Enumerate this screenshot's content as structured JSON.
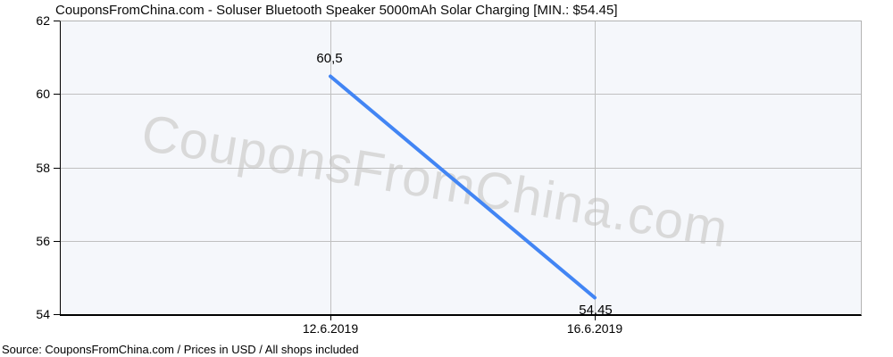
{
  "title": "CouponsFromChina.com - Soluser Bluetooth Speaker 5000mAh Solar Charging [MIN.: $54.45]",
  "watermark": "CouponsFromChina.com",
  "footer": "Source: CouponsFromChina.com / Prices in USD / All shops included",
  "colors": {
    "line": "#4285f4",
    "plot_bg": "#f5f7fb",
    "grid": "#c0c0c0",
    "border": "#b3b3b3",
    "axis": "#000000",
    "watermark": "#d9d9d9"
  },
  "chart_data": {
    "type": "line",
    "title": "CouponsFromChina.com - Soluser Bluetooth Speaker 5000mAh Solar Charging [MIN.: $54.45]",
    "x": [
      "12.6.2019",
      "16.6.2019"
    ],
    "values": [
      60.5,
      54.45
    ],
    "point_labels": [
      "60,5",
      "54,45"
    ],
    "x_tick_labels": [
      "12.6.2019",
      "16.6.2019"
    ],
    "y_tick_labels": [
      "62",
      "60",
      "58",
      "56",
      "54"
    ],
    "y_ticks": [
      54,
      56,
      58,
      60,
      62
    ],
    "ylim": [
      54,
      62
    ],
    "xlabel": "",
    "ylabel": "",
    "grid": true,
    "legend": false,
    "min_price": "$54.45",
    "currency": "USD"
  }
}
